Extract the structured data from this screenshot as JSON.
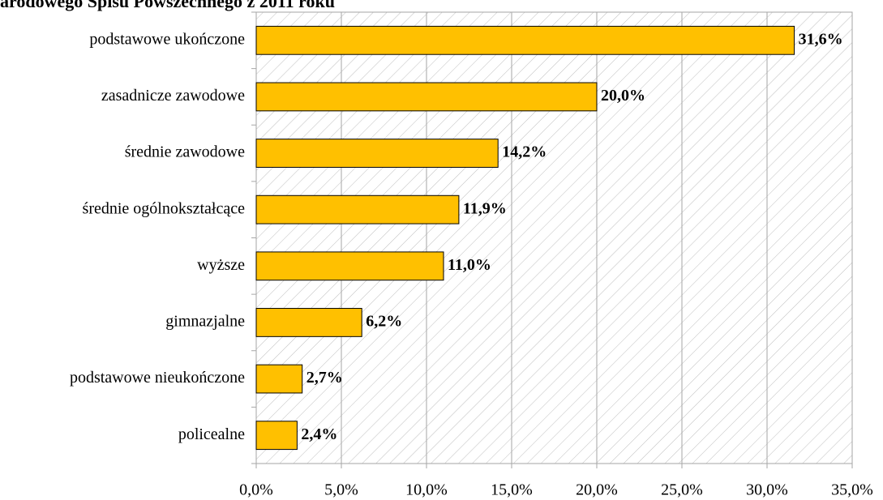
{
  "chart_data": {
    "type": "bar",
    "orientation": "horizontal",
    "title": "arodowego Spisu Powszechnego z 2011 roku",
    "categories": [
      "podstawowe ukończone",
      "zasadnicze zawodowe",
      "średnie zawodowe",
      "średnie ogólnokształcące",
      "wyższe",
      "gimnazjalne",
      "podstawowe nieukończone",
      "policealne"
    ],
    "values": [
      31.6,
      20.0,
      14.2,
      11.9,
      11.0,
      6.2,
      2.7,
      2.4
    ],
    "value_labels": [
      "31,6%",
      "20,0%",
      "14,2%",
      "11,9%",
      "11,0%",
      "6,2%",
      "2,7%",
      "2,4%"
    ],
    "color": "#ffc000",
    "xlim": [
      0,
      35
    ],
    "xticks": [
      {
        "value": 0,
        "label": "0,0%"
      },
      {
        "value": 5,
        "label": "5,0%"
      },
      {
        "value": 10,
        "label": "10,0%"
      },
      {
        "value": 15,
        "label": "15,0%"
      },
      {
        "value": 20,
        "label": "20,0%"
      },
      {
        "value": 25,
        "label": "25,0%"
      },
      {
        "value": 30,
        "label": "30,0%"
      },
      {
        "value": 35,
        "label": "35,0%"
      }
    ],
    "grid": true
  }
}
